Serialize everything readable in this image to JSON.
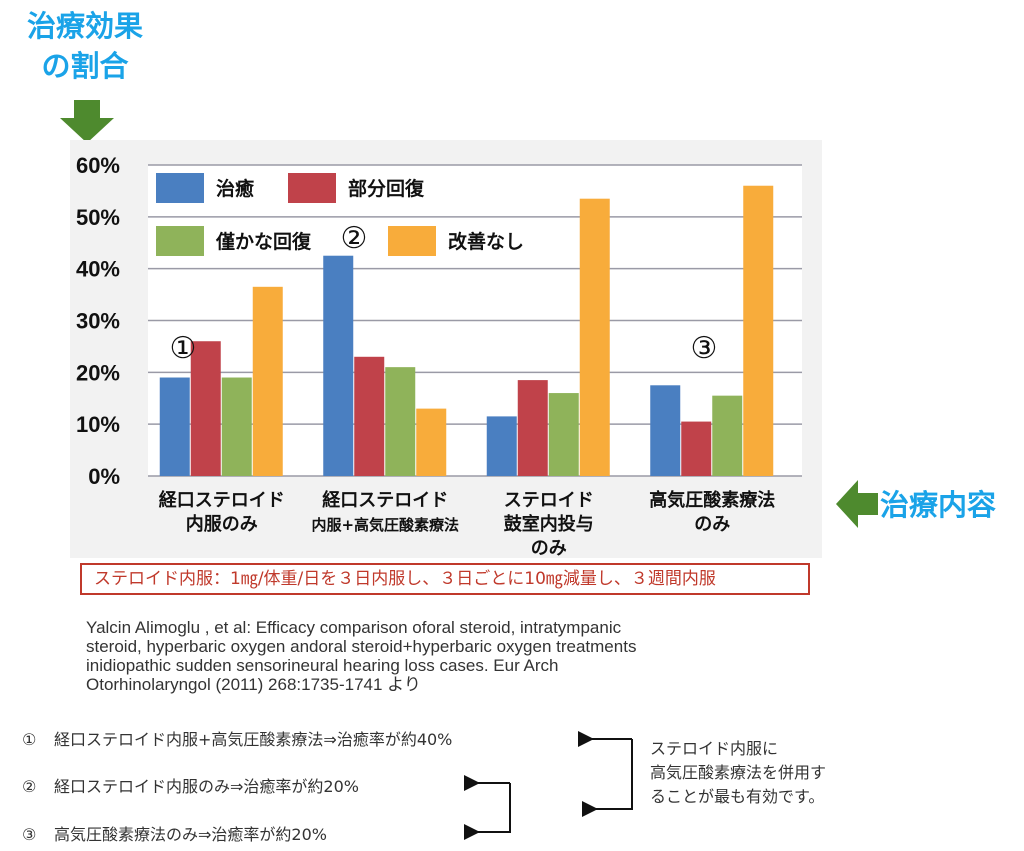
{
  "y_axis_title": [
    "治療効果",
    "の割合"
  ],
  "x_axis_title": "治療内容",
  "chart_data": {
    "type": "bar",
    "title": "",
    "xlabel": "治療内容",
    "ylabel": "治療効果の割合",
    "ylim": [
      0,
      60
    ],
    "yticks": [
      0,
      10,
      20,
      30,
      40,
      50,
      60
    ],
    "ytick_labels": [
      "0%",
      "10%",
      "20%",
      "30%",
      "40%",
      "50%",
      "60%"
    ],
    "categories": [
      [
        "経口ステロイド",
        "内服のみ"
      ],
      [
        "経口ステロイド",
        "内服+高気圧酸素療法"
      ],
      [
        "ステロイド",
        "鼓室内投与",
        "のみ"
      ],
      [
        "高気圧酸素療法",
        "のみ"
      ]
    ],
    "series": [
      {
        "name": "治癒",
        "color": "#4a7fc1",
        "values": [
          19,
          42.5,
          11.5,
          17.5
        ]
      },
      {
        "name": "部分回復",
        "color": "#c0424a",
        "values": [
          26,
          23,
          18.5,
          10.5
        ]
      },
      {
        "name": "僅かな回復",
        "color": "#8fb35a",
        "values": [
          19,
          21,
          16,
          15.5
        ]
      },
      {
        "name": "改善なし",
        "color": "#f8ac3b",
        "values": [
          36.5,
          13,
          53.5,
          56
        ]
      }
    ],
    "annotations": [
      "①",
      "②",
      "③"
    ],
    "legend": "top-left",
    "grid": true
  },
  "dosage_note": "ステロイド内服：1㎎/体重/日を３日内服し、３日ごとに10㎎減量し、３週間内服",
  "citation": [
    "Yalcin Alimoglu , et al: Efficacy comparison oforal steroid, intratympanic",
    "steroid, hyperbaric oxygen andoral steroid+hyperbaric oxygen treatments",
    "inidiopathic sudden sensorineural hearing loss cases. Eur Arch",
    "Otorhinolaryngol (2011) 268:1735-1741 より"
  ],
  "summary": [
    {
      "num": "①",
      "text": "経口ステロイド内服+高気圧酸素療法⇒治癒率が約40%"
    },
    {
      "num": "②",
      "text": "経口ステロイド内服のみ⇒治癒率が約20%"
    },
    {
      "num": "③",
      "text": "高気圧酸素療法のみ⇒治癒率が約20%"
    }
  ],
  "side_note": [
    "ステロイド内服に",
    "高気圧酸素療法を併用す",
    "ることが最も有効です。"
  ],
  "colors": {
    "title_blue": "#1aa3e8",
    "arrow_green": "#4e8a2e",
    "note_red": "#c0392b"
  }
}
